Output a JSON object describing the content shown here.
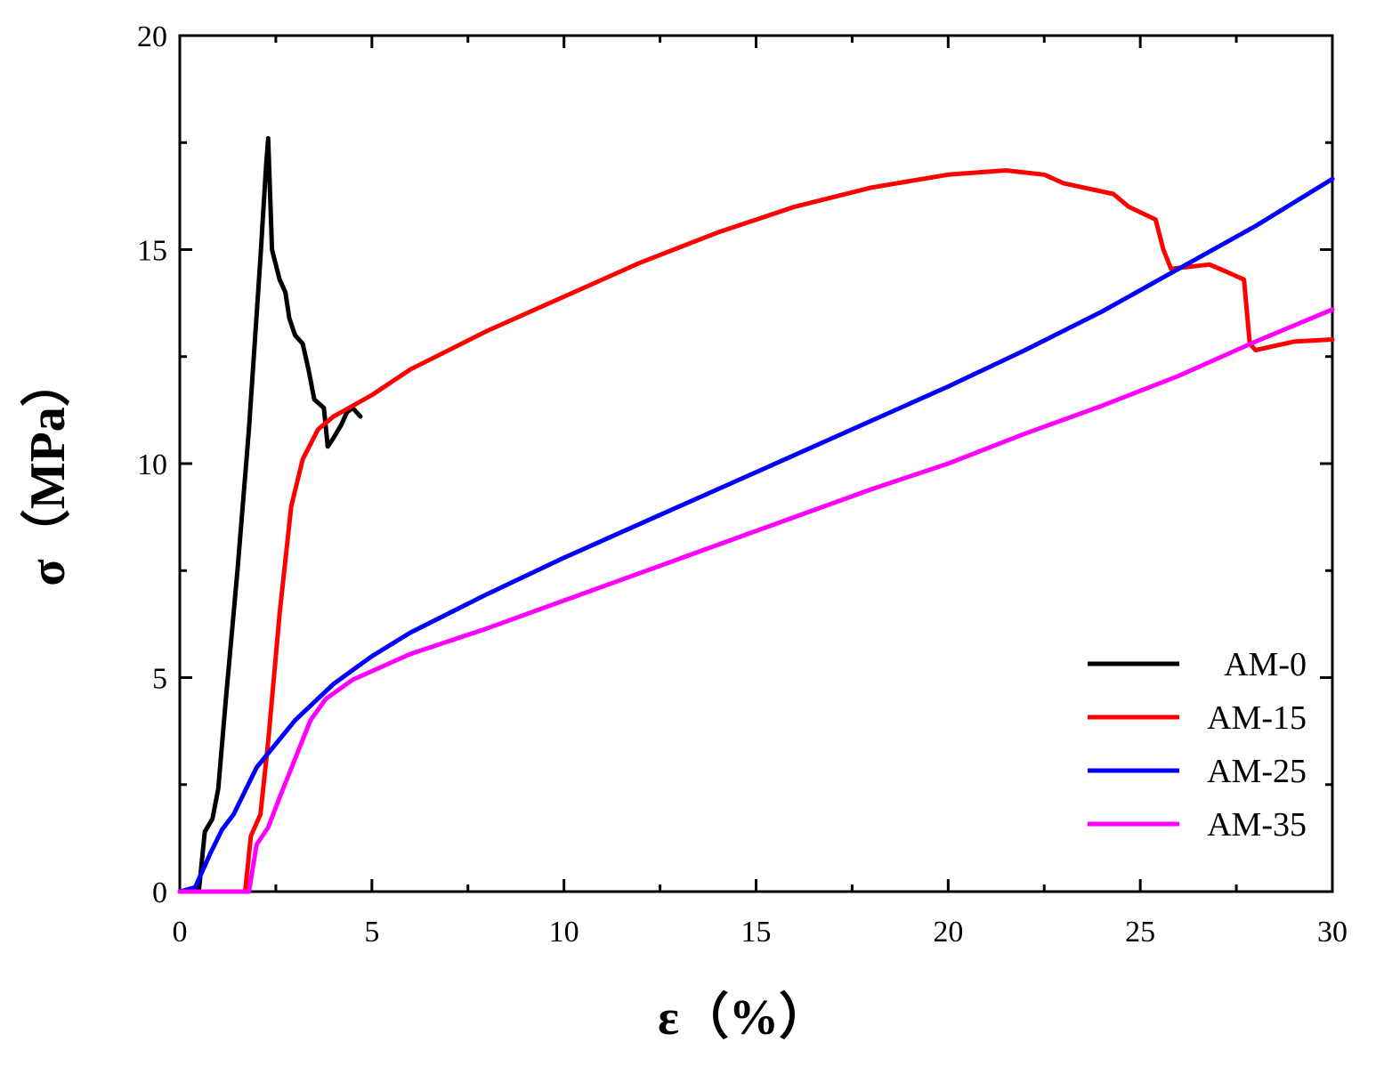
{
  "chart_data": {
    "type": "line",
    "title": "",
    "xlabel": "ε（%）",
    "ylabel": "σ（MPa）",
    "xlim": [
      0,
      30
    ],
    "ylim": [
      0,
      20
    ],
    "xticks": [
      0,
      5,
      10,
      15,
      20,
      25,
      30
    ],
    "yticks": [
      0,
      5,
      10,
      15,
      20
    ],
    "grid": false,
    "legend": "bottom-right",
    "series": [
      {
        "name": "AM-0",
        "color": "#000000",
        "points": [
          [
            0,
            0
          ],
          [
            0.5,
            0.05
          ],
          [
            0.65,
            1.4
          ],
          [
            0.85,
            1.7
          ],
          [
            1.0,
            2.4
          ],
          [
            1.2,
            4.5
          ],
          [
            1.5,
            7.5
          ],
          [
            1.8,
            10.8
          ],
          [
            2.1,
            14.8
          ],
          [
            2.25,
            17.0
          ],
          [
            2.3,
            17.6
          ],
          [
            2.4,
            15.0
          ],
          [
            2.6,
            14.3
          ],
          [
            2.75,
            14.0
          ],
          [
            2.85,
            13.4
          ],
          [
            3.0,
            13.0
          ],
          [
            3.2,
            12.8
          ],
          [
            3.35,
            12.2
          ],
          [
            3.5,
            11.5
          ],
          [
            3.75,
            11.3
          ],
          [
            3.85,
            10.4
          ],
          [
            4.0,
            10.6
          ],
          [
            4.2,
            10.9
          ],
          [
            4.35,
            11.2
          ],
          [
            4.5,
            11.3
          ],
          [
            4.7,
            11.1
          ]
        ]
      },
      {
        "name": "AM-15",
        "color": "#ff0000",
        "points": [
          [
            0,
            0
          ],
          [
            1.7,
            0
          ],
          [
            1.85,
            1.3
          ],
          [
            2.1,
            1.8
          ],
          [
            2.3,
            3.5
          ],
          [
            2.6,
            6.5
          ],
          [
            2.9,
            9.0
          ],
          [
            3.2,
            10.1
          ],
          [
            3.6,
            10.8
          ],
          [
            4.0,
            11.1
          ],
          [
            5,
            11.6
          ],
          [
            6,
            12.2
          ],
          [
            8,
            13.1
          ],
          [
            10,
            13.9
          ],
          [
            12,
            14.7
          ],
          [
            14,
            15.4
          ],
          [
            16,
            16.0
          ],
          [
            18,
            16.45
          ],
          [
            20,
            16.75
          ],
          [
            21.5,
            16.85
          ],
          [
            22.5,
            16.75
          ],
          [
            23,
            16.55
          ],
          [
            24.3,
            16.3
          ],
          [
            24.7,
            16.0
          ],
          [
            25.4,
            15.7
          ],
          [
            25.6,
            15.0
          ],
          [
            25.8,
            14.55
          ],
          [
            26.3,
            14.6
          ],
          [
            26.8,
            14.65
          ],
          [
            27.2,
            14.5
          ],
          [
            27.7,
            14.3
          ],
          [
            27.85,
            12.8
          ],
          [
            28,
            12.65
          ],
          [
            29,
            12.85
          ],
          [
            30,
            12.9
          ]
        ]
      },
      {
        "name": "AM-25",
        "color": "#0000ff",
        "points": [
          [
            0,
            0
          ],
          [
            0.4,
            0.1
          ],
          [
            0.8,
            0.9
          ],
          [
            1.1,
            1.45
          ],
          [
            1.4,
            1.8
          ],
          [
            2,
            2.9
          ],
          [
            3,
            4.0
          ],
          [
            4,
            4.85
          ],
          [
            5,
            5.5
          ],
          [
            6,
            6.05
          ],
          [
            8,
            6.95
          ],
          [
            10,
            7.8
          ],
          [
            12,
            8.6
          ],
          [
            14,
            9.4
          ],
          [
            16,
            10.2
          ],
          [
            18,
            11.0
          ],
          [
            20,
            11.8
          ],
          [
            22,
            12.65
          ],
          [
            24,
            13.55
          ],
          [
            26,
            14.55
          ],
          [
            28,
            15.55
          ],
          [
            30,
            16.65
          ]
        ]
      },
      {
        "name": "AM-35",
        "color": "#ff00ff",
        "points": [
          [
            0,
            0
          ],
          [
            1.8,
            0
          ],
          [
            2.0,
            1.1
          ],
          [
            2.3,
            1.5
          ],
          [
            2.6,
            2.2
          ],
          [
            3.0,
            3.1
          ],
          [
            3.4,
            4.0
          ],
          [
            3.8,
            4.5
          ],
          [
            4.5,
            4.95
          ],
          [
            6,
            5.55
          ],
          [
            8,
            6.15
          ],
          [
            10,
            6.8
          ],
          [
            12,
            7.45
          ],
          [
            14,
            8.1
          ],
          [
            16,
            8.75
          ],
          [
            18,
            9.4
          ],
          [
            20,
            10.0
          ],
          [
            22,
            10.7
          ],
          [
            24,
            11.35
          ],
          [
            26,
            12.05
          ],
          [
            28,
            12.85
          ],
          [
            30,
            13.6
          ]
        ]
      }
    ]
  }
}
